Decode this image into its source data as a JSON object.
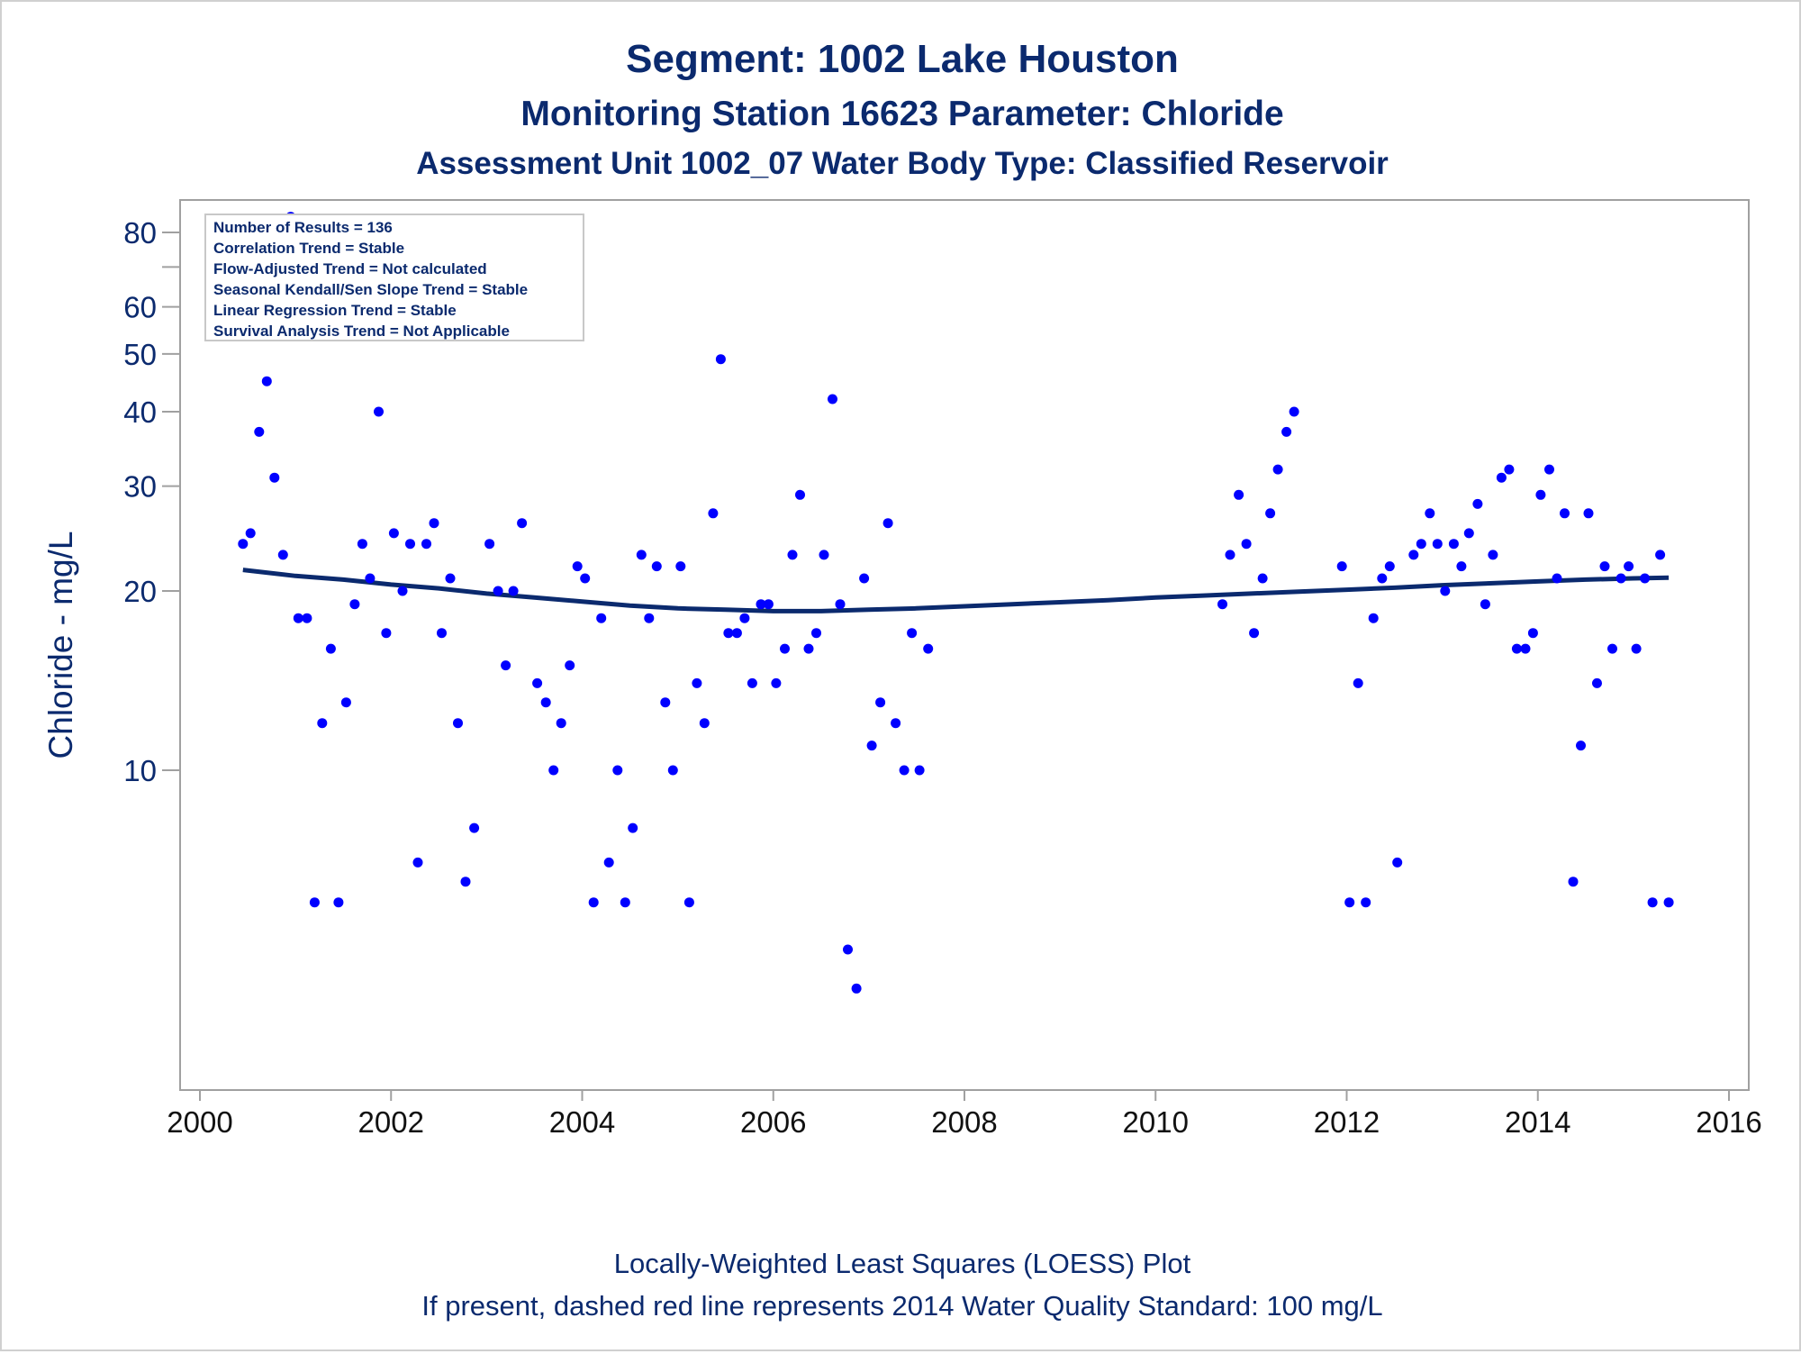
{
  "titles": {
    "line1": "Segment: 1002  Lake Houston",
    "line2": "Monitoring Station 16623 Parameter: Chloride",
    "line3": "Assessment Unit 1002_07   Water Body Type: Classified Reservoir"
  },
  "stats_box": {
    "lines": [
      "Number of Results = 136",
      "Correlation Trend = Stable",
      "Flow-Adjusted Trend = Not calculated",
      "Seasonal Kendall/Sen Slope Trend = Stable",
      "Linear Regression Trend = Stable",
      "Survival Analysis Trend = Not Applicable"
    ]
  },
  "footnotes": {
    "line1": "Locally-Weighted Least Squares (LOESS) Plot",
    "line2": "If present, dashed red line represents 2014 Water Quality Standard: 100    mg/L"
  },
  "colors": {
    "text": "#0b2a6e",
    "points": "#0000ff",
    "loess": "#0b2a6e",
    "axis": "#a0a0a0"
  },
  "chart_data": {
    "type": "scatter",
    "title": "Segment: 1002  Lake Houston",
    "ylabel": "Chloride - mg/L",
    "xlabel": "",
    "y_scale": "log",
    "xlim": [
      2000,
      2016
    ],
    "ylim": [
      4,
      90
    ],
    "x_ticks": [
      2000,
      2002,
      2004,
      2006,
      2008,
      2010,
      2012,
      2014,
      2016
    ],
    "y_ticks_labeled": [
      10,
      20,
      30,
      40,
      50,
      60,
      80
    ],
    "y_ticks_minor": [
      70
    ],
    "grid": false,
    "legend": "none",
    "series": [
      {
        "kind": "points",
        "points": [
          [
            2000.45,
            24
          ],
          [
            2000.53,
            25
          ],
          [
            2000.62,
            37
          ],
          [
            2000.7,
            45
          ],
          [
            2000.78,
            31
          ],
          [
            2000.87,
            23
          ],
          [
            2000.95,
            85
          ],
          [
            2001.03,
            18
          ],
          [
            2001.12,
            18
          ],
          [
            2001.2,
            6
          ],
          [
            2001.28,
            12
          ],
          [
            2001.37,
            16
          ],
          [
            2001.45,
            6
          ],
          [
            2001.53,
            13
          ],
          [
            2001.62,
            19
          ],
          [
            2001.7,
            24
          ],
          [
            2001.78,
            21
          ],
          [
            2001.87,
            40
          ],
          [
            2001.95,
            17
          ],
          [
            2002.03,
            25
          ],
          [
            2002.12,
            20
          ],
          [
            2002.2,
            24
          ],
          [
            2002.28,
            7
          ],
          [
            2002.37,
            24
          ],
          [
            2002.45,
            26
          ],
          [
            2002.53,
            17
          ],
          [
            2002.62,
            21
          ],
          [
            2002.7,
            12
          ],
          [
            2002.78,
            6.5
          ],
          [
            2002.87,
            8
          ],
          [
            2003.03,
            24
          ],
          [
            2003.12,
            20
          ],
          [
            2003.2,
            15
          ],
          [
            2003.28,
            20
          ],
          [
            2003.37,
            26
          ],
          [
            2003.53,
            14
          ],
          [
            2003.62,
            13
          ],
          [
            2003.7,
            10
          ],
          [
            2003.78,
            12
          ],
          [
            2003.87,
            15
          ],
          [
            2003.95,
            22
          ],
          [
            2004.03,
            21
          ],
          [
            2004.12,
            6
          ],
          [
            2004.2,
            18
          ],
          [
            2004.28,
            7
          ],
          [
            2004.37,
            10
          ],
          [
            2004.45,
            6
          ],
          [
            2004.53,
            8
          ],
          [
            2004.62,
            23
          ],
          [
            2004.7,
            18
          ],
          [
            2004.78,
            22
          ],
          [
            2004.87,
            13
          ],
          [
            2004.95,
            10
          ],
          [
            2005.03,
            22
          ],
          [
            2005.12,
            6
          ],
          [
            2005.2,
            14
          ],
          [
            2005.28,
            12
          ],
          [
            2005.37,
            27
          ],
          [
            2005.45,
            49
          ],
          [
            2005.53,
            17
          ],
          [
            2005.62,
            17
          ],
          [
            2005.7,
            18
          ],
          [
            2005.78,
            14
          ],
          [
            2005.87,
            19
          ],
          [
            2005.95,
            19
          ],
          [
            2006.03,
            14
          ],
          [
            2006.12,
            16
          ],
          [
            2006.2,
            23
          ],
          [
            2006.28,
            29
          ],
          [
            2006.37,
            16
          ],
          [
            2006.45,
            17
          ],
          [
            2006.53,
            23
          ],
          [
            2006.62,
            42
          ],
          [
            2006.7,
            19
          ],
          [
            2006.78,
            5
          ],
          [
            2006.87,
            4.3
          ],
          [
            2006.95,
            21
          ],
          [
            2007.03,
            11
          ],
          [
            2007.12,
            13
          ],
          [
            2007.2,
            26
          ],
          [
            2007.28,
            12
          ],
          [
            2007.37,
            10
          ],
          [
            2007.45,
            17
          ],
          [
            2007.53,
            10
          ],
          [
            2007.62,
            16
          ],
          [
            2010.7,
            19
          ],
          [
            2010.78,
            23
          ],
          [
            2010.87,
            29
          ],
          [
            2010.95,
            24
          ],
          [
            2011.03,
            17
          ],
          [
            2011.12,
            21
          ],
          [
            2011.2,
            27
          ],
          [
            2011.28,
            32
          ],
          [
            2011.37,
            37
          ],
          [
            2011.45,
            40
          ],
          [
            2011.95,
            22
          ],
          [
            2012.03,
            6
          ],
          [
            2012.12,
            14
          ],
          [
            2012.2,
            6
          ],
          [
            2012.28,
            18
          ],
          [
            2012.37,
            21
          ],
          [
            2012.45,
            22
          ],
          [
            2012.53,
            7
          ],
          [
            2012.7,
            23
          ],
          [
            2012.78,
            24
          ],
          [
            2012.87,
            27
          ],
          [
            2012.95,
            24
          ],
          [
            2013.03,
            20
          ],
          [
            2013.12,
            24
          ],
          [
            2013.2,
            22
          ],
          [
            2013.28,
            25
          ],
          [
            2013.37,
            28
          ],
          [
            2013.45,
            19
          ],
          [
            2013.53,
            23
          ],
          [
            2013.62,
            31
          ],
          [
            2013.7,
            32
          ],
          [
            2013.78,
            16
          ],
          [
            2013.87,
            16
          ],
          [
            2013.95,
            17
          ],
          [
            2014.03,
            29
          ],
          [
            2014.12,
            32
          ],
          [
            2014.2,
            21
          ],
          [
            2014.28,
            27
          ],
          [
            2014.37,
            6.5
          ],
          [
            2014.45,
            11
          ],
          [
            2014.53,
            27
          ],
          [
            2014.62,
            14
          ],
          [
            2014.7,
            22
          ],
          [
            2014.78,
            16
          ],
          [
            2014.87,
            21
          ],
          [
            2014.95,
            22
          ],
          [
            2015.03,
            16
          ],
          [
            2015.12,
            21
          ],
          [
            2015.2,
            6
          ],
          [
            2015.28,
            23
          ],
          [
            2015.37,
            6
          ]
        ]
      },
      {
        "kind": "loess",
        "points": [
          [
            2000.45,
            21.7
          ],
          [
            2001.0,
            21.2
          ],
          [
            2001.5,
            20.9
          ],
          [
            2002.0,
            20.5
          ],
          [
            2002.5,
            20.2
          ],
          [
            2003.0,
            19.8
          ],
          [
            2003.5,
            19.5
          ],
          [
            2004.0,
            19.2
          ],
          [
            2004.5,
            18.9
          ],
          [
            2005.0,
            18.7
          ],
          [
            2005.5,
            18.6
          ],
          [
            2006.0,
            18.5
          ],
          [
            2006.5,
            18.5
          ],
          [
            2007.0,
            18.6
          ],
          [
            2007.5,
            18.7
          ],
          [
            2008.0,
            18.85
          ],
          [
            2008.5,
            19.0
          ],
          [
            2009.0,
            19.15
          ],
          [
            2009.5,
            19.3
          ],
          [
            2010.0,
            19.5
          ],
          [
            2010.5,
            19.65
          ],
          [
            2011.0,
            19.8
          ],
          [
            2011.5,
            19.95
          ],
          [
            2012.0,
            20.1
          ],
          [
            2012.5,
            20.25
          ],
          [
            2013.0,
            20.45
          ],
          [
            2013.5,
            20.6
          ],
          [
            2014.0,
            20.75
          ],
          [
            2014.5,
            20.9
          ],
          [
            2015.0,
            21.0
          ],
          [
            2015.37,
            21.05
          ]
        ]
      }
    ]
  }
}
